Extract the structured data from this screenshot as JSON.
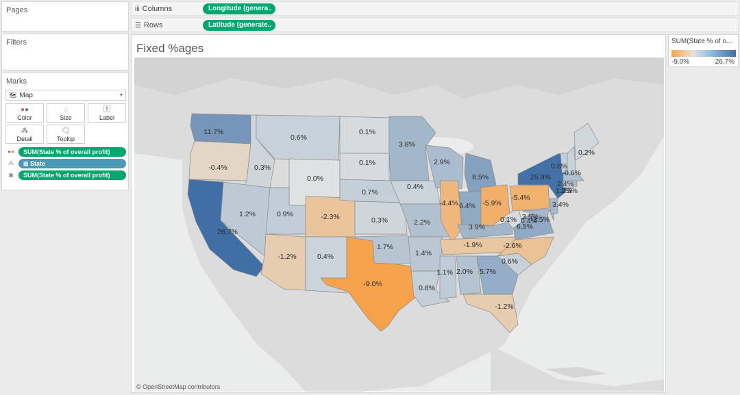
{
  "shelves": {
    "pages_title": "Pages",
    "filters_title": "Filters",
    "columns_label": "Columns",
    "rows_label": "Rows",
    "columns_pill": "Longitude (genera..",
    "rows_pill": "Latitude (generate.."
  },
  "marks": {
    "title": "Marks",
    "mark_type": "Map",
    "buttons": {
      "color": "Color",
      "size": "Size",
      "label": "Label",
      "detail": "Detail",
      "tooltip": "Tooltip"
    },
    "fields": [
      {
        "text": "SUM(State % of overall profit)",
        "role": "color"
      },
      {
        "text": "⊞ State",
        "role": "detail"
      },
      {
        "text": "SUM(State % of overall profit)",
        "role": "label"
      }
    ]
  },
  "sheet": {
    "title": "Fixed %ages",
    "attribution": "© OpenStreetMap contributors"
  },
  "legend": {
    "title": "SUM(State % of o...",
    "min_label": "-9.0%",
    "max_label": "26.7%",
    "low_color": "#f6a24a",
    "high_color": "#3f6fa5"
  },
  "map_data": {
    "measure": "SUM(State % of overall profit)",
    "range": [
      -9.0,
      26.7
    ],
    "states": [
      {
        "state": "Washington",
        "label": "11.7%",
        "value": 11.7
      },
      {
        "state": "Oregon",
        "label": "-0.4%",
        "value": -0.4
      },
      {
        "state": "California",
        "label": "26.7%",
        "value": 26.7
      },
      {
        "state": "Idaho",
        "label": "0.3%",
        "value": 0.3
      },
      {
        "state": "Nevada",
        "label": "1.2%",
        "value": 1.2
      },
      {
        "state": "Montana",
        "label": "0.6%",
        "value": 0.6
      },
      {
        "state": "Wyoming",
        "label": "0.0%",
        "value": 0.0
      },
      {
        "state": "Utah",
        "label": "0.9%",
        "value": 0.9
      },
      {
        "state": "Arizona",
        "label": "-1.2%",
        "value": -1.2
      },
      {
        "state": "Colorado",
        "label": "-2.3%",
        "value": -2.3
      },
      {
        "state": "New Mexico",
        "label": "0.4%",
        "value": 0.4
      },
      {
        "state": "North Dakota",
        "label": "0.1%",
        "value": 0.1
      },
      {
        "state": "South Dakota",
        "label": "0.1%",
        "value": 0.1
      },
      {
        "state": "Nebraska",
        "label": "0.7%",
        "value": 0.7
      },
      {
        "state": "Kansas",
        "label": "0.3%",
        "value": 0.3
      },
      {
        "state": "Oklahoma",
        "label": "1.7%",
        "value": 1.7
      },
      {
        "state": "Texas",
        "label": "-9.0%",
        "value": -9.0
      },
      {
        "state": "Minnesota",
        "label": "3.8%",
        "value": 3.8
      },
      {
        "state": "Iowa",
        "label": "0.4%",
        "value": 0.4
      },
      {
        "state": "Missouri",
        "label": "2.2%",
        "value": 2.2
      },
      {
        "state": "Arkansas",
        "label": "1.4%",
        "value": 1.4
      },
      {
        "state": "Louisiana",
        "label": "0.8%",
        "value": 0.8
      },
      {
        "state": "Wisconsin",
        "label": "2.9%",
        "value": 2.9
      },
      {
        "state": "Illinois",
        "label": "-4.4%",
        "value": -4.4
      },
      {
        "state": "Michigan",
        "label": "8.5%",
        "value": 8.5
      },
      {
        "state": "Indiana",
        "label": "6.4%",
        "value": 6.4
      },
      {
        "state": "Ohio",
        "label": "-5.9%",
        "value": -5.9
      },
      {
        "state": "Kentucky",
        "label": "3.9%",
        "value": 3.9
      },
      {
        "state": "Tennessee",
        "label": "-1.9%",
        "value": -1.9
      },
      {
        "state": "Mississippi",
        "label": "1.1%",
        "value": 1.1
      },
      {
        "state": "Alabama",
        "label": "2.0%",
        "value": 2.0
      },
      {
        "state": "Georgia",
        "label": "5.7%",
        "value": 5.7
      },
      {
        "state": "Florida",
        "label": "-1.2%",
        "value": -1.2
      },
      {
        "state": "South Carolina",
        "label": "0.6%",
        "value": 0.6
      },
      {
        "state": "North Carolina",
        "label": "-2.6%",
        "value": -2.6
      },
      {
        "state": "Virginia",
        "label": "6.5%",
        "value": 6.5
      },
      {
        "state": "West Virginia",
        "label": "0.1%",
        "value": 0.1
      },
      {
        "state": "Pennsylvania",
        "label": "-5.4%",
        "value": -5.4
      },
      {
        "state": "Maryland",
        "label": "3.5%",
        "value": 3.5
      },
      {
        "state": "Delaware",
        "label": "3.5%",
        "value": 3.5
      },
      {
        "state": "District of Columbia",
        "label": "0.4%",
        "value": 0.4
      },
      {
        "state": "New Jersey",
        "label": "3.4%",
        "value": 3.4
      },
      {
        "state": "New York",
        "label": "25.9%",
        "value": 25.9
      },
      {
        "state": "Vermont",
        "label": "0.8%",
        "value": 0.8
      },
      {
        "state": "New Hampshire",
        "label": "0.6%",
        "value": 0.6
      },
      {
        "state": "Massachusetts",
        "label": "2.4%",
        "value": 2.4
      },
      {
        "state": "Connecticut",
        "label": "1.2%",
        "value": 1.2
      },
      {
        "state": "Rhode Island",
        "label": "2.5%",
        "value": 2.5
      },
      {
        "state": "Maine",
        "label": "0.2%",
        "value": 0.2
      }
    ]
  }
}
